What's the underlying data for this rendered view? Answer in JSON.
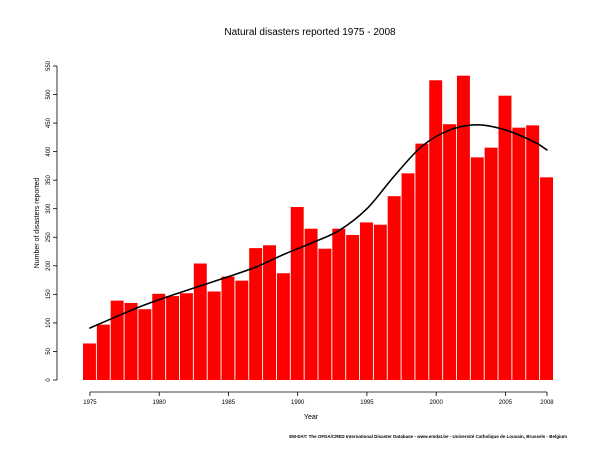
{
  "chart_data": {
    "type": "bar",
    "title": "Natural disasters reported 1975 - 2008",
    "xlabel": "Year",
    "ylabel": "Number of disasters reported",
    "source": "EM-DAT: The OFDA/CRED International Disaster Database - www.emdat.be - Université Catholique de Louvain, Brussels - Belgium",
    "bar_color": "#ff0000",
    "trend_color": "#000000",
    "grid": false,
    "legend": "none",
    "ylim": [
      0,
      550
    ],
    "yticks": [
      0,
      50,
      100,
      150,
      200,
      250,
      300,
      350,
      400,
      450,
      500,
      550
    ],
    "xticks": [
      1975,
      1980,
      1985,
      1990,
      1995,
      2000,
      2005,
      2008
    ],
    "categories": [
      1975,
      1976,
      1977,
      1978,
      1979,
      1980,
      1981,
      1982,
      1983,
      1984,
      1985,
      1986,
      1987,
      1988,
      1989,
      1990,
      1991,
      1992,
      1993,
      1994,
      1995,
      1996,
      1997,
      1998,
      1999,
      2000,
      2001,
      2002,
      2003,
      2004,
      2005,
      2006,
      2007,
      2008
    ],
    "values": [
      64,
      97,
      139,
      135,
      124,
      151,
      147,
      152,
      204,
      155,
      181,
      174,
      231,
      236,
      187,
      303,
      265,
      230,
      265,
      254,
      276,
      272,
      322,
      362,
      414,
      525,
      448,
      533,
      390,
      407,
      498,
      442,
      446,
      355
    ],
    "trend": {
      "name": "",
      "x": [
        1975,
        1977,
        1979,
        1981,
        1983,
        1985,
        1987,
        1989,
        1991,
        1993,
        1995,
        1997,
        1999,
        2001,
        2003,
        2005,
        2007,
        2008
      ],
      "y": [
        91,
        112,
        132,
        149,
        165,
        181,
        198,
        220,
        240,
        262,
        300,
        358,
        410,
        438,
        447,
        438,
        418,
        403
      ]
    }
  }
}
